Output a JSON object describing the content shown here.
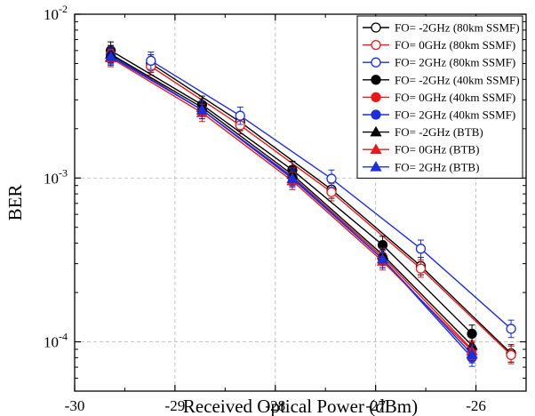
{
  "chart_data": {
    "type": "line",
    "xlabel": "Received Optical Power (dBm)",
    "ylabel": "BER",
    "xlim": [
      -30,
      -25.5
    ],
    "ylim": [
      5e-05,
      0.01
    ],
    "yscale": "log",
    "grid": true,
    "legend_position": "top-right",
    "x_ticks": [
      -30,
      -29,
      -28,
      -27,
      -26
    ],
    "x_tick_labels": [
      "-30",
      "-29",
      "-28",
      "-27",
      "-26"
    ],
    "y_ticks": [
      0.0001,
      0.001,
      0.01
    ],
    "y_tick_labels": [
      {
        "base": "10",
        "exp": "-4"
      },
      {
        "base": "10",
        "exp": "-3"
      },
      {
        "base": "10",
        "exp": "-2"
      }
    ],
    "series": [
      {
        "name": "FO= -2GHz (80km SSMF)",
        "color": "#000000",
        "marker": "circle-open",
        "x": [
          -29.24,
          -28.35,
          -27.44,
          -26.55,
          -25.65
        ],
        "y": [
          0.005,
          0.0022,
          0.00085,
          0.00029,
          8.5e-05
        ]
      },
      {
        "name": "FO= 0GHz (80km SSMF)",
        "color": "#e41a1c",
        "marker": "circle-open",
        "x": [
          -29.24,
          -28.35,
          -27.44,
          -26.55,
          -25.65
        ],
        "y": [
          0.0048,
          0.0021,
          0.00082,
          0.00028,
          8.3e-05
        ]
      },
      {
        "name": "FO= 2GHz (80km SSMF)",
        "color": "#1f2fd6",
        "marker": "circle-open",
        "x": [
          -29.24,
          -28.35,
          -27.44,
          -26.55,
          -25.65
        ],
        "y": [
          0.0052,
          0.0024,
          0.00099,
          0.00037,
          0.00012
        ]
      },
      {
        "name": "FO= -2GHz (40km SSMF)",
        "color": "#000000",
        "marker": "circle-filled",
        "x": [
          -29.64,
          -28.73,
          -27.83,
          -26.93,
          -26.04
        ],
        "y": [
          0.006,
          0.0028,
          0.00112,
          0.00039,
          0.000112
        ]
      },
      {
        "name": "FO= 0GHz (40km SSMF)",
        "color": "#e41a1c",
        "marker": "circle-filled",
        "x": [
          -29.64,
          -28.73,
          -27.83,
          -26.93,
          -26.04
        ],
        "y": [
          0.0057,
          0.0026,
          0.00102,
          0.00033,
          9e-05
        ]
      },
      {
        "name": "FO= 2GHz (40km SSMF)",
        "color": "#1f2fd6",
        "marker": "circle-filled",
        "x": [
          -29.64,
          -28.73,
          -27.83,
          -26.93,
          -26.04
        ],
        "y": [
          0.0056,
          0.0026,
          0.00101,
          0.00032,
          8e-05
        ]
      },
      {
        "name": "FO= -2GHz (BTB)",
        "color": "#000000",
        "marker": "triangle-filled",
        "x": [
          -29.64,
          -28.73,
          -27.83,
          -26.93,
          -26.04
        ],
        "y": [
          0.0057,
          0.0027,
          0.00105,
          0.00034,
          9.5e-05
        ]
      },
      {
        "name": "FO= 0GHz (BTB)",
        "color": "#e41a1c",
        "marker": "triangle-filled",
        "x": [
          -29.64,
          -28.73,
          -27.83,
          -26.93,
          -26.04
        ],
        "y": [
          0.0054,
          0.0025,
          0.00096,
          0.00031,
          8.8e-05
        ]
      },
      {
        "name": "FO= 2GHz (BTB)",
        "color": "#1f2fd6",
        "marker": "triangle-filled",
        "x": [
          -29.64,
          -28.73,
          -27.83,
          -26.93,
          -26.04
        ],
        "y": [
          0.0055,
          0.0026,
          0.00099,
          0.00032,
          8.4e-05
        ]
      }
    ]
  }
}
